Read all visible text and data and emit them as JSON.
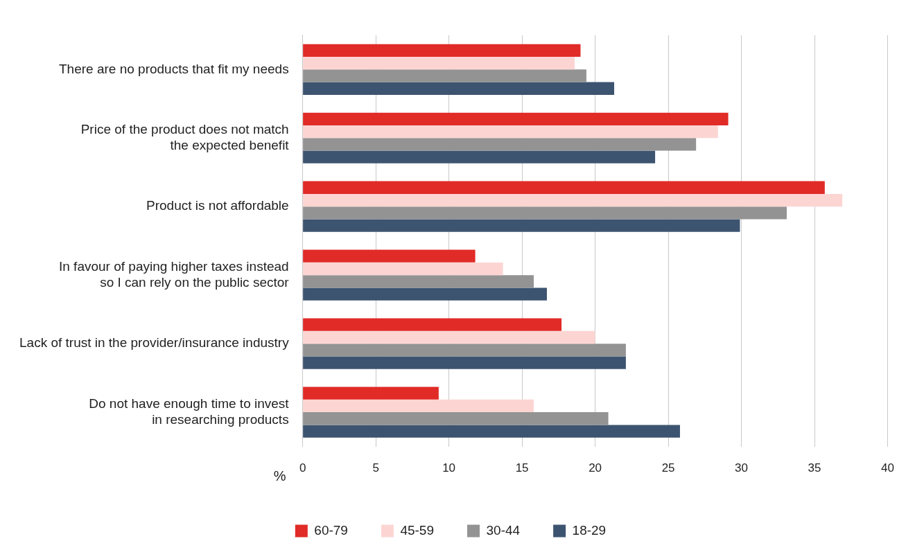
{
  "chart_data": {
    "type": "bar",
    "orientation": "horizontal",
    "xlabel": "%",
    "categories": [
      "There are no products that fit my needs",
      "Price of the product does not match\nthe expected benefit",
      "Product is not affordable",
      "In favour of paying higher taxes instead\nso I can rely on the public sector",
      "Lack of trust in the provider/insurance industry",
      "Do not have enough time to invest\nin researching products"
    ],
    "series": [
      {
        "name": "60-79",
        "color": "#e02b27",
        "values": [
          19.0,
          29.1,
          35.7,
          11.8,
          17.7,
          9.3
        ]
      },
      {
        "name": "45-59",
        "color": "#fcd5d3",
        "values": [
          18.6,
          28.4,
          36.9,
          13.7,
          20.0,
          15.8
        ]
      },
      {
        "name": "30-44",
        "color": "#939393",
        "values": [
          19.4,
          26.9,
          33.1,
          15.8,
          22.1,
          20.9
        ]
      },
      {
        "name": "18-29",
        "color": "#3d5470",
        "values": [
          21.3,
          24.1,
          29.9,
          16.7,
          22.1,
          25.8
        ]
      }
    ],
    "xlim": [
      0,
      40
    ],
    "xticks": [
      0,
      5,
      10,
      15,
      20,
      25,
      30,
      35,
      40
    ],
    "grid": "x",
    "legend": "bottom"
  }
}
